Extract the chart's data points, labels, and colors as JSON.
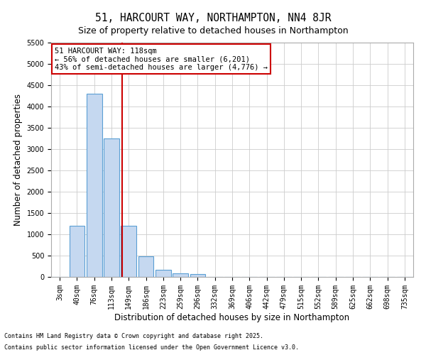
{
  "title": "51, HARCOURT WAY, NORTHAMPTON, NN4 8JR",
  "subtitle": "Size of property relative to detached houses in Northampton",
  "xlabel": "Distribution of detached houses by size in Northampton",
  "ylabel": "Number of detached properties",
  "bin_labels": [
    "3sqm",
    "40sqm",
    "76sqm",
    "113sqm",
    "149sqm",
    "186sqm",
    "223sqm",
    "259sqm",
    "296sqm",
    "332sqm",
    "369sqm",
    "406sqm",
    "442sqm",
    "479sqm",
    "515sqm",
    "552sqm",
    "589sqm",
    "625sqm",
    "662sqm",
    "698sqm",
    "735sqm"
  ],
  "bar_values": [
    0,
    1200,
    4300,
    3250,
    1200,
    480,
    160,
    90,
    60,
    0,
    0,
    0,
    0,
    0,
    0,
    0,
    0,
    0,
    0,
    0,
    0
  ],
  "bar_color": "#c5d8f0",
  "bar_edge_color": "#5a9fd4",
  "vline_x": 3.63,
  "vline_color": "#cc0000",
  "annotation_text": "51 HARCOURT WAY: 118sqm\n← 56% of detached houses are smaller (6,201)\n43% of semi-detached houses are larger (4,776) →",
  "annotation_box_color": "#cc0000",
  "ylim": [
    0,
    5500
  ],
  "yticks": [
    0,
    500,
    1000,
    1500,
    2000,
    2500,
    3000,
    3500,
    4000,
    4500,
    5000,
    5500
  ],
  "footnote1": "Contains HM Land Registry data © Crown copyright and database right 2025.",
  "footnote2": "Contains public sector information licensed under the Open Government Licence v3.0.",
  "bg_color": "#ffffff",
  "grid_color": "#cccccc",
  "title_fontsize": 10.5,
  "subtitle_fontsize": 9,
  "axis_label_fontsize": 8.5,
  "tick_fontsize": 7,
  "annotation_fontsize": 7.5,
  "footnote_fontsize": 6
}
